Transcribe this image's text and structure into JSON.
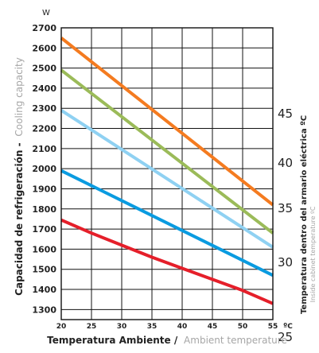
{
  "chart_data": {
    "type": "line",
    "x_unit": "ºC",
    "y_unit": "W",
    "x_ticks": [
      "20",
      "25",
      "30",
      "35",
      "40",
      "45",
      "50",
      "55"
    ],
    "y_ticks": [
      "1300",
      "1400",
      "1500",
      "1600",
      "1700",
      "1800",
      "1900",
      "2000",
      "2100",
      "2200",
      "2300",
      "2400",
      "2500",
      "2600",
      "2700"
    ],
    "right_ticks": [
      "25",
      "30",
      "35",
      "40",
      "45"
    ],
    "xlim": [
      20,
      55
    ],
    "ylim": [
      1250,
      2700
    ],
    "grid": true,
    "xlabel_bold": "Temperatura Ambiente /",
    "xlabel_light": "Ambient temperature",
    "ylabel_bold": "Capacidad de refrigeración -",
    "ylabel_light": "Cooling capacity",
    "right_label_bold": "Temperatura dentro del armario eléctrica ºC",
    "right_label_light": "Inside cabinet temperature ºC",
    "series": [
      {
        "color": "#f47b20",
        "x": [
          20,
          55
        ],
        "y": [
          2650,
          1820
        ]
      },
      {
        "color": "#9bbb59",
        "x": [
          20,
          55
        ],
        "y": [
          2490,
          1680
        ]
      },
      {
        "color": "#8fd1f2",
        "x": [
          20,
          55
        ],
        "y": [
          2290,
          1610
        ]
      },
      {
        "color": "#0a9be0",
        "x": [
          20,
          55
        ],
        "y": [
          1990,
          1470
        ]
      },
      {
        "color": "#e51f2a",
        "x": [
          20,
          25,
          30,
          35,
          40,
          45,
          50,
          55
        ],
        "y": [
          1745,
          1680,
          1620,
          1560,
          1505,
          1450,
          1395,
          1330
        ]
      }
    ]
  }
}
